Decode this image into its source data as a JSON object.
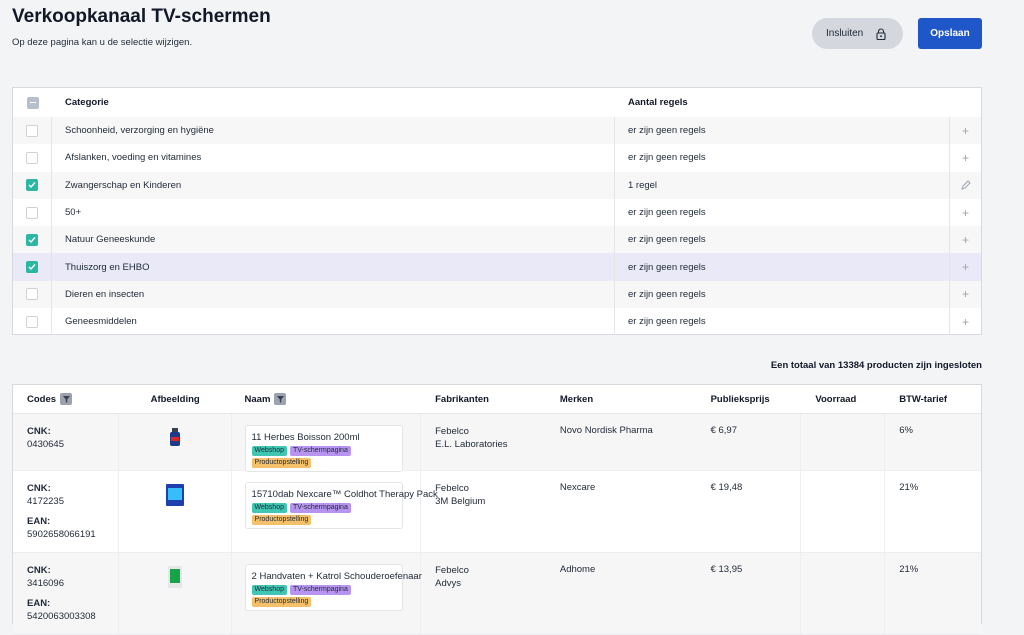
{
  "header": {
    "title": "Verkoopkanaal TV-schermen",
    "subtitle": "Op deze pagina kan u de selectie wijzigen.",
    "lock_button": "Insluiten",
    "save_button": "Opslaan"
  },
  "categories": {
    "columns": [
      "Categorie",
      "Aantal regels"
    ],
    "rows": [
      {
        "name": "Schoonheid, verzorging en hygiëne",
        "rules": "er zijn geen regels",
        "checked": false,
        "action": "+"
      },
      {
        "name": "Afslanken, voeding en vitamines",
        "rules": "er zijn geen regels",
        "checked": false,
        "action": "+"
      },
      {
        "name": "Zwangerschap en Kinderen",
        "rules": "1 regel",
        "checked": true,
        "action": "edit"
      },
      {
        "name": "50+",
        "rules": "er zijn geen regels",
        "checked": false,
        "action": "+"
      },
      {
        "name": "Natuur Geneeskunde",
        "rules": "er zijn geen regels",
        "checked": true,
        "action": "+"
      },
      {
        "name": "Thuiszorg en EHBO",
        "rules": "er zijn geen regels",
        "checked": true,
        "action": "+"
      },
      {
        "name": "Dieren en insecten",
        "rules": "er zijn geen regels",
        "checked": false,
        "action": "+"
      },
      {
        "name": "Geneesmiddelen",
        "rules": "er zijn geen regels",
        "checked": false,
        "action": "+"
      }
    ]
  },
  "total_note": "Een totaal van 13384 producten zijn ingesloten",
  "products": {
    "columns": {
      "codes": "Codes",
      "image": "Afbeelding",
      "name": "Naam",
      "manufacturers": "Fabrikanten",
      "brands": "Merken",
      "price": "Publieksprijs",
      "stock": "Voorraad",
      "vat": "BTW-tarief"
    },
    "tags": {
      "web": "Webshop",
      "tv": "TV-schermpagina",
      "prod": "Productopstelling"
    },
    "rows": [
      {
        "cnk_label": "CNK:",
        "cnk": "0430645",
        "ean_label": "",
        "ean": "",
        "name": "11 Herbes Boisson 200ml",
        "fab1": "Febelco",
        "fab2": "E.L. Laboratories",
        "brand": "Novo Nordisk Pharma",
        "price": "€ 6,97",
        "stock": "",
        "vat": "6%"
      },
      {
        "cnk_label": "CNK:",
        "cnk": "4172235",
        "ean_label": "EAN:",
        "ean": "5902658066191",
        "name": "15710dab Nexcare™ Coldhot Therapy Pack",
        "fab1": "Febelco",
        "fab2": "3M Belgium",
        "brand": "Nexcare",
        "price": "€ 19,48",
        "stock": "",
        "vat": "21%"
      },
      {
        "cnk_label": "CNK:",
        "cnk": "3416096",
        "ean_label": "EAN:",
        "ean": "5420063003308",
        "name": "2 Handvaten + Katrol Schouderoefenaar",
        "fab1": "Febelco",
        "fab2": "Advys",
        "brand": "Adhome",
        "price": "€ 13,95",
        "stock": "",
        "vat": "21%"
      }
    ]
  }
}
